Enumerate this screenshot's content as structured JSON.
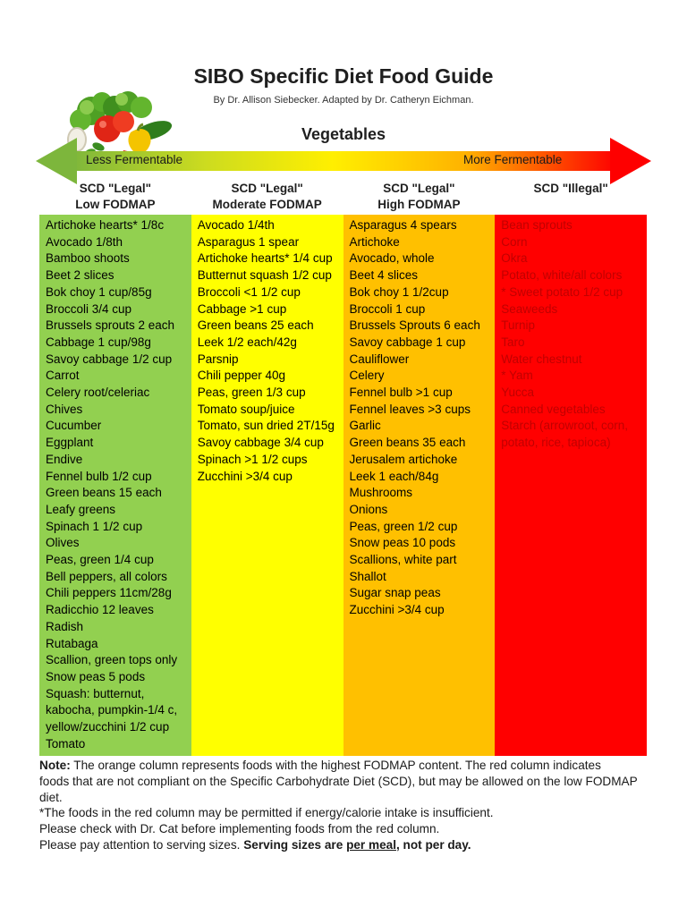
{
  "page": {
    "title": "SIBO Specific Diet Food Guide",
    "subtitle": "By Dr. Allison Siebecker. Adapted by Dr. Catheryn Eichman.",
    "section_title": "Vegetables"
  },
  "arrow": {
    "left_label": "Less Fermentable",
    "right_label": "More Fermentable",
    "gradient": [
      "#7db63c",
      "#cddc1f",
      "#ffef00",
      "#ffb300",
      "#fe0000"
    ],
    "head_left_color": "#7db63c",
    "head_right_color": "#fe0000"
  },
  "columns": [
    {
      "header_line1": "SCD \"Legal\"",
      "header_line2": "Low FODMAP",
      "bg_color": "#92d050",
      "text_color": "#000000",
      "items": [
        "Artichoke hearts* 1/8c",
        "Avocado 1/8th",
        "Bamboo shoots",
        "Beet 2 slices",
        "Bok choy 1 cup/85g",
        "Broccoli 3/4 cup",
        "Brussels sprouts 2 each",
        "Cabbage 1 cup/98g",
        "Savoy cabbage 1/2 cup",
        "Carrot",
        "Celery root/celeriac",
        "Chives",
        "Cucumber",
        "Eggplant",
        "Endive",
        "Fennel bulb 1/2 cup",
        "Green beans 15 each",
        "Leafy greens",
        "Spinach 1 1/2 cup",
        "Olives",
        "Peas, green 1/4 cup",
        "Bell peppers, all colors",
        "Chili peppers 11cm/28g",
        "Radicchio 12 leaves",
        "Radish",
        "Rutabaga",
        "Scallion, green tops only",
        "Snow peas 5 pods",
        "Squash: butternut, kabocha, pumpkin-1/4 c, yellow/zucchini 1/2 cup",
        "Tomato"
      ]
    },
    {
      "header_line1": "SCD \"Legal\"",
      "header_line2": "Moderate FODMAP",
      "bg_color": "#ffff00",
      "text_color": "#000000",
      "items": [
        "Avocado 1/4th",
        "Asparagus 1 spear",
        "Artichoke hearts* 1/4 cup",
        "Butternut squash 1/2 cup",
        "Broccoli <1 1/2 cup",
        "Cabbage >1 cup",
        "Green beans 25 each",
        "Leek 1/2 each/42g",
        "Parsnip",
        "Chili pepper 40g",
        "Peas, green 1/3 cup",
        "Tomato soup/juice",
        "Tomato, sun dried 2T/15g",
        "Savoy cabbage 3/4 cup",
        "Spinach >1 1/2 cups",
        "Zucchini >3/4 cup"
      ]
    },
    {
      "header_line1": "SCD \"Legal\"",
      "header_line2": "High FODMAP",
      "bg_color": "#ffc000",
      "text_color": "#000000",
      "items": [
        "Asparagus 4 spears",
        "Artichoke",
        "Avocado, whole",
        "Beet 4 slices",
        "Bok choy 1 1/2cup",
        "Broccoli 1 cup",
        "Brussels Sprouts 6 each",
        "Savoy cabbage 1 cup",
        "Cauliflower",
        "Celery",
        "Fennel bulb >1 cup",
        "Fennel leaves >3 cups",
        "Garlic",
        "Green beans 35 each",
        "Jerusalem artichoke",
        "Leek 1 each/84g",
        "Mushrooms",
        "Onions",
        "Peas, green 1/2 cup",
        "Snow peas 10 pods",
        "Scallions, white part",
        "Shallot",
        "Sugar snap peas",
        "Zucchini >3/4 cup"
      ]
    },
    {
      "header_line1": "SCD \"Illegal\"",
      "header_line2": "",
      "bg_color": "#ff0000",
      "text_color": "#c00000",
      "items": [
        "Bean sprouts",
        "Corn",
        "Okra",
        "Potato, white/all colors",
        "* Sweet potato 1/2 cup",
        "Seaweeds",
        "Turnip",
        "Taro",
        "Water chestnut",
        "* Yam",
        "Yucca",
        "Canned vegetables",
        "Starch (arrowroot, corn, potato, rice, tapioca)"
      ]
    }
  ],
  "note": {
    "prefix": "Note:",
    "line1_rest": " The orange column represents foods with the highest FODMAP content. The red column indicates",
    "line2": "foods that are not compliant on the Specific Carbohydrate Diet (SCD), but may be allowed on the low FODMAP diet.",
    "line3": "*The foods in the red column may be permitted if energy/calorie intake is insufficient.",
    "line4": "Please check with Dr. Cat before implementing foods from the red column.",
    "line5_normal": "Please pay attention to serving sizes. ",
    "line5_bold1": "Serving sizes are ",
    "line5_bold_underline": "per meal",
    "line5_bold2": ", not per day."
  }
}
